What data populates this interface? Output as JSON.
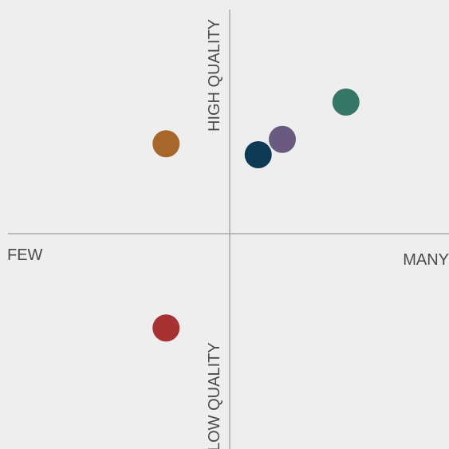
{
  "chart_data": {
    "type": "scatter",
    "x": [
      -0.29,
      0.13,
      0.24,
      0.53,
      -0.29
    ],
    "values": [
      0.41,
      0.36,
      0.43,
      0.6,
      -0.43
    ],
    "colors": [
      "#a8672a",
      "#0d3b55",
      "#6a5a80",
      "#357767",
      "#a83232"
    ],
    "xlim": [
      -1,
      1
    ],
    "ylim": [
      -1,
      1
    ],
    "x_label_low": "FEW",
    "x_label_high": "MANY",
    "y_label_high": "HIGH QUALITY",
    "y_label_low": "LOW QUALITY"
  }
}
